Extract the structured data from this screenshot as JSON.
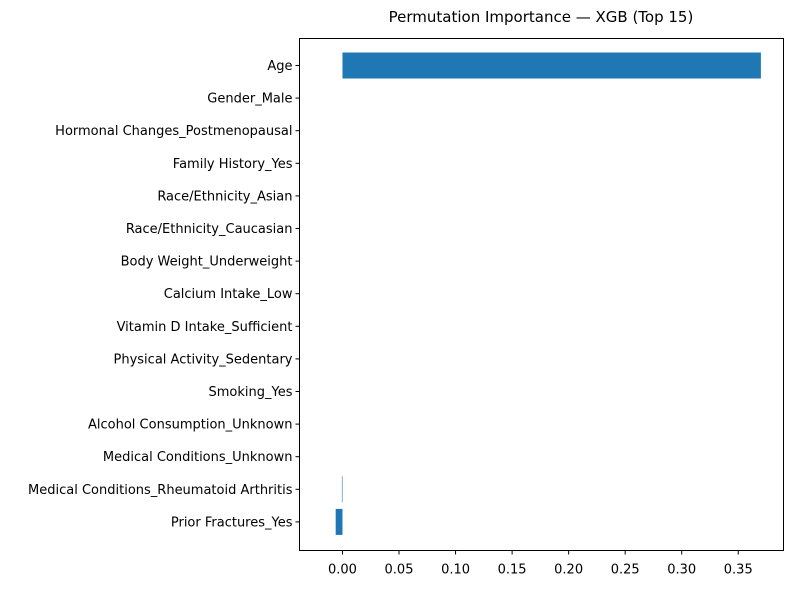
{
  "chart_data": {
    "type": "bar",
    "orientation": "horizontal",
    "title": "Permutation Importance — XGB (Top 15)",
    "xlabel": "",
    "ylabel": "",
    "categories": [
      "Age",
      "Gender_Male",
      "Hormonal Changes_Postmenopausal",
      "Family History_Yes",
      "Race/Ethnicity_Asian",
      "Race/Ethnicity_Caucasian",
      "Body Weight_Underweight",
      "Calcium Intake_Low",
      "Vitamin D Intake_Sufficient",
      "Physical Activity_Sedentary",
      "Smoking_Yes",
      "Alcohol Consumption_Unknown",
      "Medical Conditions_Unknown",
      "Medical Conditions_Rheumatoid Arthritis",
      "Prior Fractures_Yes"
    ],
    "values": [
      0.37,
      0.0,
      0.0,
      0.0,
      0.0,
      0.0,
      0.0,
      0.0,
      0.0,
      0.0,
      0.0,
      0.0,
      0.0,
      -0.0005,
      -0.006
    ],
    "xlim": [
      -0.038,
      0.39
    ],
    "xticks": [
      0.0,
      0.05,
      0.1,
      0.15,
      0.2,
      0.25,
      0.3,
      0.35
    ],
    "xtick_labels": [
      "0.00",
      "0.05",
      "0.10",
      "0.15",
      "0.20",
      "0.25",
      "0.30",
      "0.35"
    ],
    "bar_color": "#1f77b4",
    "grid": false
  }
}
